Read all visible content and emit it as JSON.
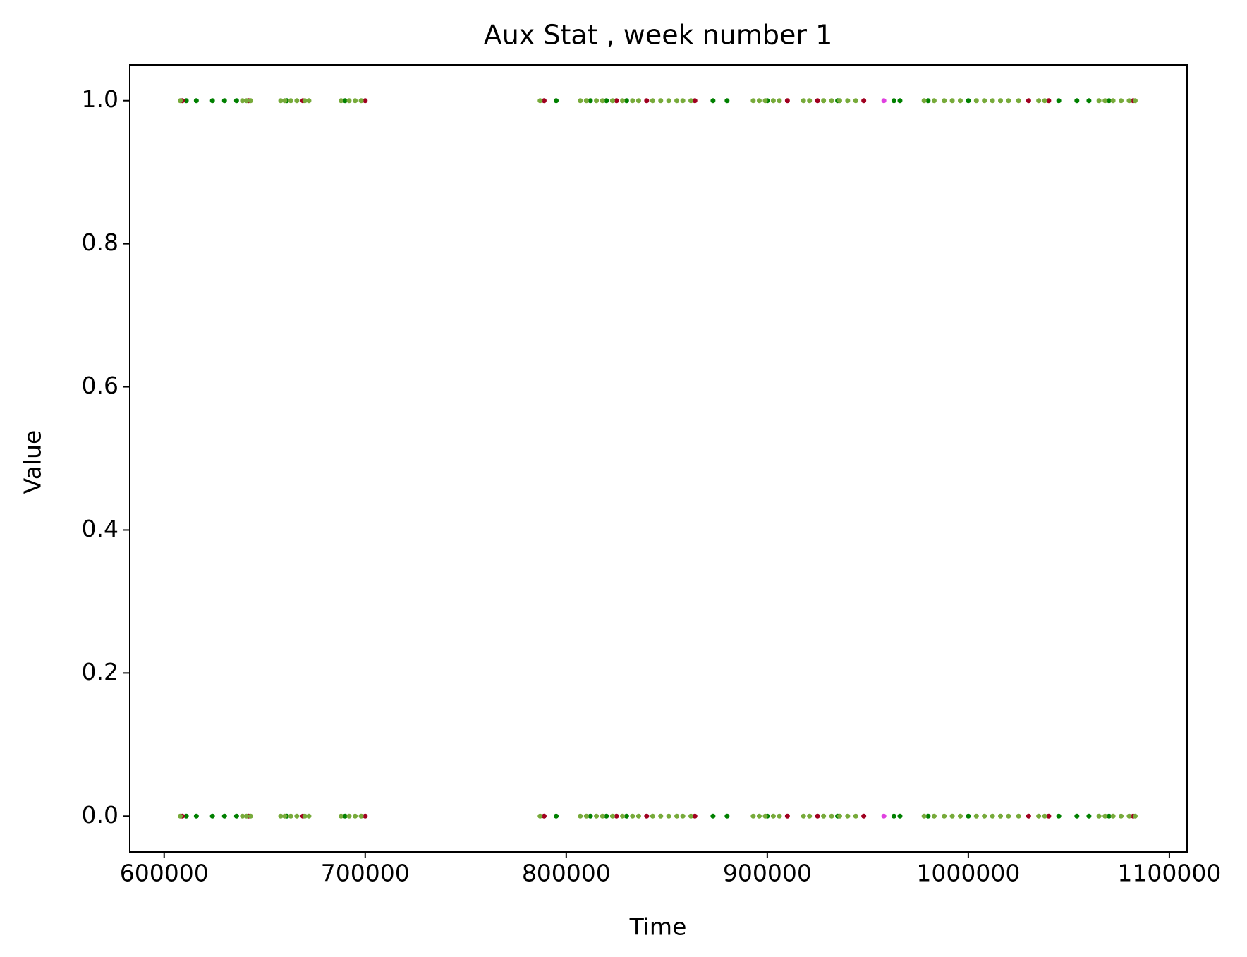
{
  "chart_data": {
    "type": "scatter",
    "title": "Aux Stat , week number 1",
    "x_label": "Time",
    "y_label": "Value",
    "xlim": [
      582900,
      1108800
    ],
    "ylim": [
      -0.05,
      1.05
    ],
    "xticks": [
      600000,
      700000,
      800000,
      900000,
      1000000,
      1100000
    ],
    "yticks": [
      {
        "value": 0,
        "label": "0.0"
      },
      {
        "value": 0.2,
        "label": "0.2"
      },
      {
        "value": 0.4,
        "label": "0.4"
      },
      {
        "value": 0.6,
        "label": "0.6"
      },
      {
        "value": 0.8,
        "label": "0.8"
      },
      {
        "value": 1,
        "label": "1.0"
      }
    ],
    "series": [
      {
        "color": "#008000",
        "x": [
          611000,
          616000,
          624000,
          630000,
          636000,
          661000,
          690000,
          795000,
          812000,
          820000,
          830000,
          873000,
          880000,
          900000,
          935000,
          963000,
          966000,
          980000,
          1000000,
          1045000,
          1054000,
          1060000,
          1070000,
          611000,
          616000,
          624000,
          630000,
          636000,
          661000,
          690000,
          795000,
          812000,
          820000,
          830000,
          873000,
          880000,
          900000,
          935000,
          963000,
          966000,
          980000,
          1000000,
          1045000,
          1054000,
          1060000,
          1070000
        ],
        "values": [
          1,
          1,
          1,
          1,
          1,
          1,
          1,
          1,
          1,
          1,
          1,
          1,
          1,
          1,
          1,
          1,
          1,
          1,
          1,
          1,
          1,
          1,
          1,
          0,
          0,
          0,
          0,
          0,
          0,
          0,
          0,
          0,
          0,
          0,
          0,
          0,
          0,
          0,
          0,
          0,
          0,
          0,
          0,
          0,
          0,
          0
        ]
      },
      {
        "color": "#a00020",
        "x": [
          609000,
          642000,
          669000,
          700000,
          789000,
          825000,
          840000,
          864000,
          910000,
          925000,
          948000,
          1030000,
          1040000,
          1082000,
          609000,
          642000,
          669000,
          700000,
          789000,
          825000,
          840000,
          864000,
          910000,
          925000,
          948000,
          1030000,
          1040000,
          1082000
        ],
        "values": [
          1,
          1,
          1,
          1,
          1,
          1,
          1,
          1,
          1,
          1,
          1,
          1,
          1,
          1,
          0,
          0,
          0,
          0,
          0,
          0,
          0,
          0,
          0,
          0,
          0,
          0,
          0,
          0
        ]
      },
      {
        "color": "#e040e0",
        "x": [
          958000,
          958000
        ],
        "values": [
          1,
          0
        ]
      },
      {
        "color": "#77aa3a",
        "x": [
          608000,
          639000,
          641000,
          643000,
          658000,
          660000,
          663000,
          666000,
          670000,
          672000,
          688000,
          692000,
          695000,
          698000,
          787000,
          807000,
          810000,
          815000,
          818000,
          823000,
          828000,
          833000,
          836000,
          843000,
          847000,
          851000,
          855000,
          858000,
          862000,
          893000,
          896000,
          899000,
          903000,
          906000,
          918000,
          921000,
          928000,
          932000,
          936000,
          940000,
          944000,
          978000,
          983000,
          988000,
          992000,
          996000,
          1004000,
          1008000,
          1012000,
          1016000,
          1020000,
          1025000,
          1035000,
          1038000,
          1065000,
          1068000,
          1072000,
          1076000,
          1080000,
          1083000,
          608000,
          639000,
          641000,
          643000,
          658000,
          660000,
          663000,
          666000,
          670000,
          672000,
          688000,
          692000,
          695000,
          698000,
          787000,
          807000,
          810000,
          815000,
          818000,
          823000,
          828000,
          833000,
          836000,
          843000,
          847000,
          851000,
          855000,
          858000,
          862000,
          893000,
          896000,
          899000,
          903000,
          906000,
          918000,
          921000,
          928000,
          932000,
          936000,
          940000,
          944000,
          978000,
          983000,
          988000,
          992000,
          996000,
          1004000,
          1008000,
          1012000,
          1016000,
          1020000,
          1025000,
          1035000,
          1038000,
          1065000,
          1068000,
          1072000,
          1076000,
          1080000,
          1083000
        ],
        "values": [
          1,
          1,
          1,
          1,
          1,
          1,
          1,
          1,
          1,
          1,
          1,
          1,
          1,
          1,
          1,
          1,
          1,
          1,
          1,
          1,
          1,
          1,
          1,
          1,
          1,
          1,
          1,
          1,
          1,
          1,
          1,
          1,
          1,
          1,
          1,
          1,
          1,
          1,
          1,
          1,
          1,
          1,
          1,
          1,
          1,
          1,
          1,
          1,
          1,
          1,
          1,
          1,
          1,
          1,
          1,
          1,
          1,
          1,
          1,
          1,
          0,
          0,
          0,
          0,
          0,
          0,
          0,
          0,
          0,
          0,
          0,
          0,
          0,
          0,
          0,
          0,
          0,
          0,
          0,
          0,
          0,
          0,
          0,
          0,
          0,
          0,
          0,
          0,
          0,
          0,
          0,
          0,
          0,
          0,
          0,
          0,
          0,
          0,
          0,
          0,
          0,
          0,
          0,
          0,
          0,
          0,
          0,
          0,
          0,
          0,
          0,
          0,
          0,
          0,
          0,
          0,
          0,
          0,
          0,
          0
        ]
      }
    ]
  }
}
